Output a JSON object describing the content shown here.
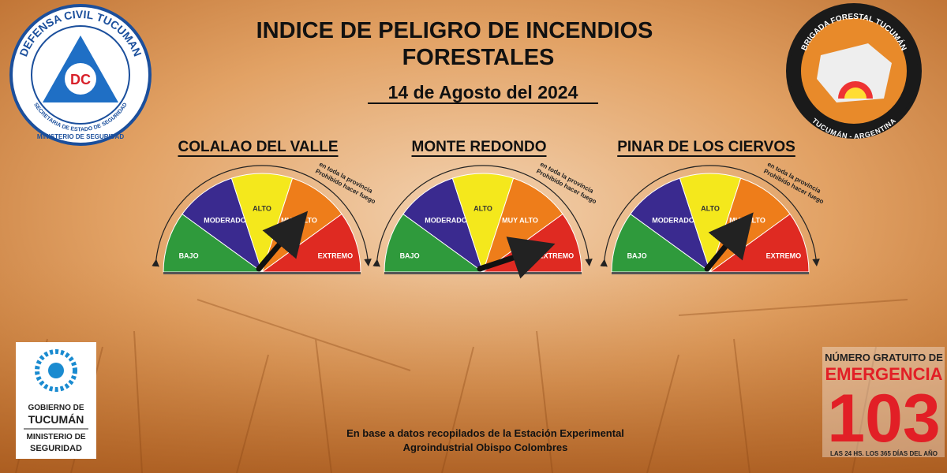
{
  "header": {
    "title_lines": [
      "INDICE DE PELIGRO DE INCENDIOS",
      "FORESTALES"
    ],
    "date": "14 de Agosto del 2024"
  },
  "logo_left": {
    "ring": "DEFENSA CIVIL TUCUMAN",
    "badge": "DC",
    "bottom_lines": [
      "SECRETARIA DE ESTADO DE SEGURIDAD",
      "MINISTERIO DE SEGURIDAD"
    ]
  },
  "logo_right": {
    "ring_top": "BRIGADA FORESTAL TUCUMÁN",
    "ring_bottom": "TUCUMÁN - ARGENTINA"
  },
  "levels": [
    {
      "label": "BAJO",
      "color": "#2f9a3c"
    },
    {
      "label": "MODERADO",
      "color": "#3a2a8f"
    },
    {
      "label": "ALTO",
      "color": "#f4e81c"
    },
    {
      "label": "MUY ALTO",
      "color": "#ee7d1a"
    },
    {
      "label": "EXTREMO",
      "color": "#df2a22"
    }
  ],
  "note_lines": [
    "Prohibido hacer fuego",
    "en toda la provincia"
  ],
  "gauges": [
    {
      "name": "COLALAO DEL VALLE"
    },
    {
      "name": "MONTE REDONDO"
    },
    {
      "name": "PINAR DE LOS CIERVOS"
    }
  ],
  "government": {
    "lines": [
      "GOBIERNO DE",
      "TUCUMÁN",
      "MINISTERIO DE",
      "SEGURIDAD"
    ]
  },
  "emergency": {
    "top": "NÚMERO GRATUITO DE",
    "word": "EMERGENCIA",
    "number": "103",
    "bottom": "LAS 24 HS. LOS 365 DÍAS DEL AÑO"
  },
  "source_lines": [
    "En base a datos recopilados de la Estación Experimental",
    "Agroindustrial Obispo Colombres"
  ]
}
